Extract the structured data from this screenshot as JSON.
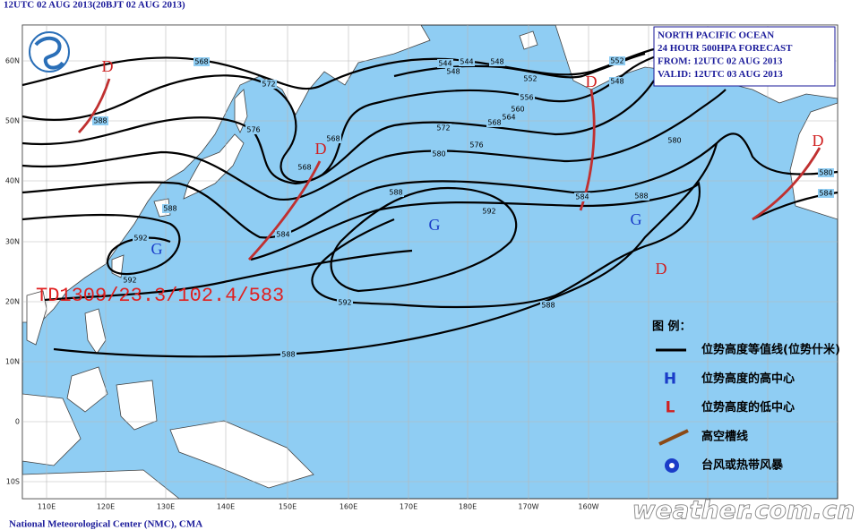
{
  "header": {
    "title": "12UTC 02 AUG 2013(20BJT 02 AUG 2013)"
  },
  "info_box": {
    "lines": [
      "NORTH PACIFIC OCEAN",
      "24 HOUR 500HPA FORECAST",
      "FROM: 12UTC 02 AUG 2013",
      "VALID: 12UTC 03 AUG 2013"
    ]
  },
  "map": {
    "lon_labels": [
      "110E",
      "120E",
      "130E",
      "140E",
      "150E",
      "160E",
      "170E",
      "180E",
      "170W",
      "160W"
    ],
    "lat_labels": [
      "60N",
      "50N",
      "40N",
      "30N",
      "20N",
      "10N",
      "0",
      "10S"
    ],
    "contour_labels": [
      "568",
      "572",
      "576",
      "588",
      "568",
      "568",
      "584",
      "588",
      "592",
      "592",
      "544",
      "544",
      "548",
      "548",
      "552",
      "556",
      "560",
      "564",
      "568",
      "572",
      "576",
      "580",
      "588",
      "592",
      "592",
      "588",
      "588",
      "552",
      "548",
      "580",
      "588",
      "584",
      "580",
      "584"
    ],
    "low_centers": [
      "D",
      "D",
      "D",
      "D",
      "D"
    ],
    "high_centers": [
      "G",
      "G",
      "G"
    ],
    "typhoon_label": "TD1309/23.3/102.4/583"
  },
  "legend": {
    "title": "图 例：",
    "items": [
      {
        "label": "位势高度等值线(位势什米)"
      },
      {
        "symbol": "H",
        "label": "位势高度的高中心"
      },
      {
        "symbol": "L",
        "label": "位势高度的低中心"
      },
      {
        "label": "高空槽线"
      },
      {
        "label": "台风或热带风暴"
      }
    ]
  },
  "footer": {
    "credit": "National Meteorological Center (NMC), CMA",
    "watermark": "weather.com.cn"
  }
}
